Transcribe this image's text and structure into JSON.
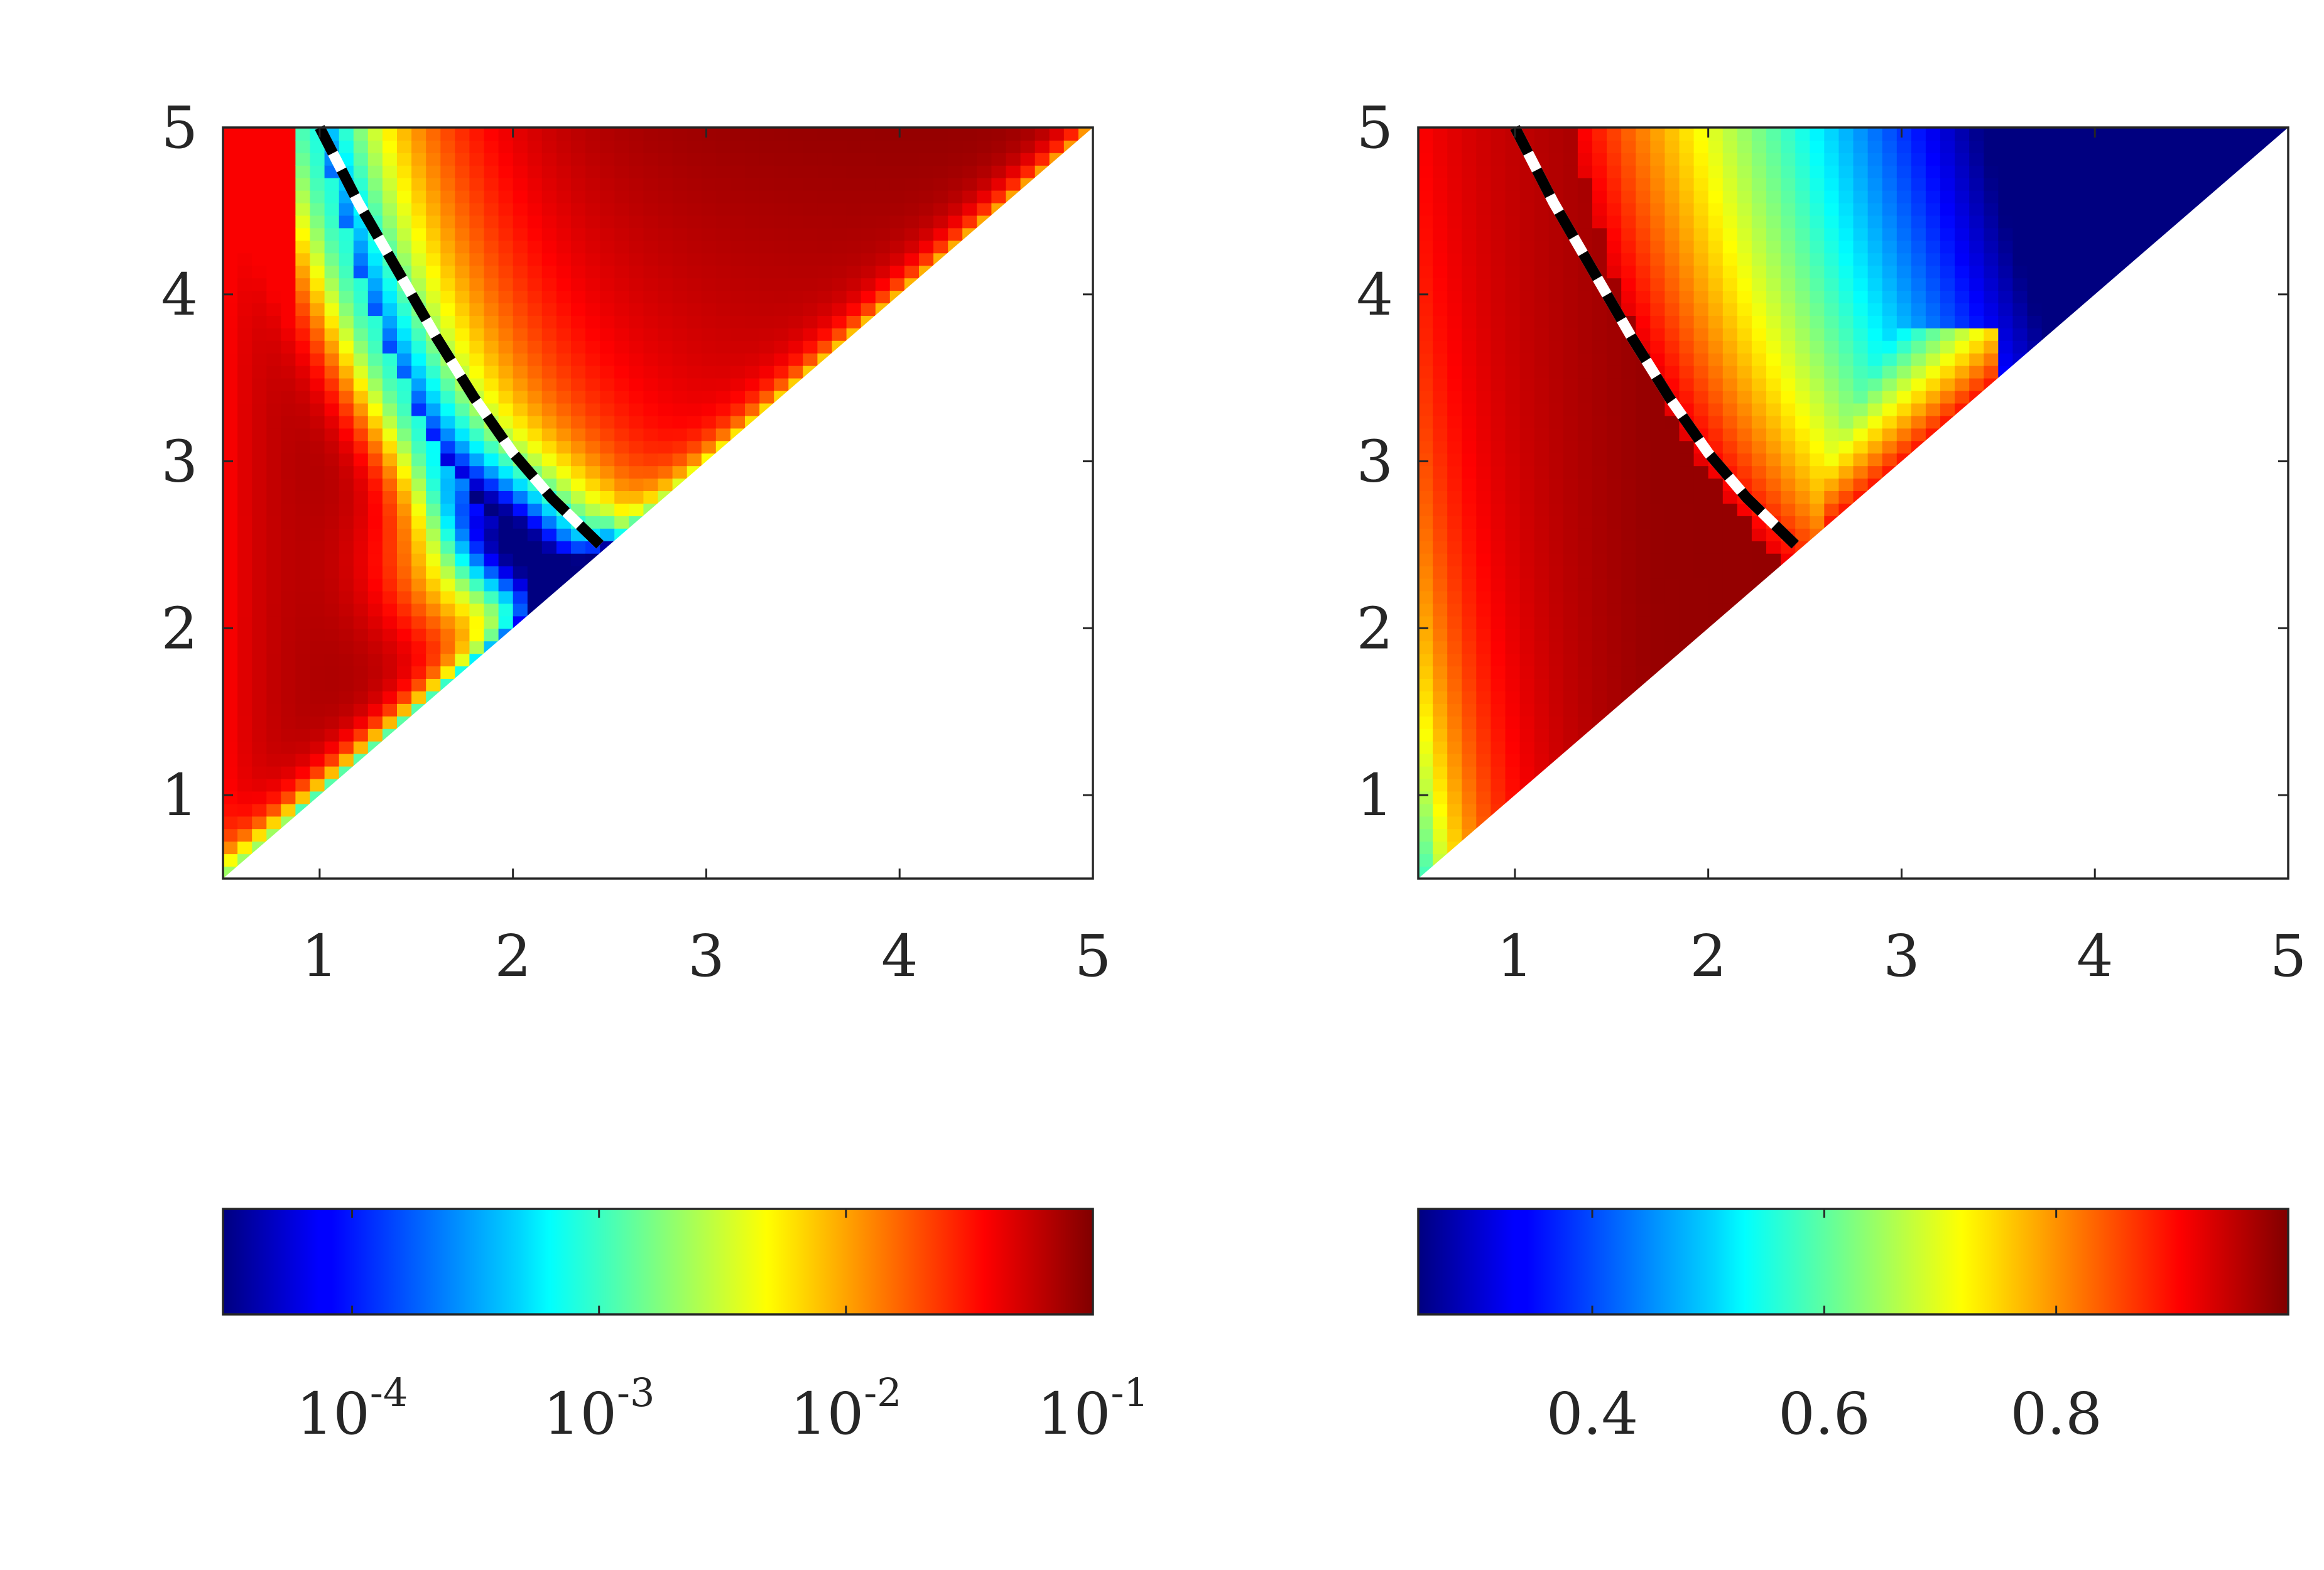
{
  "chart_data": [
    {
      "type": "heatmap",
      "title": "",
      "xlabel": "",
      "ylabel": "",
      "xlim": [
        0.5,
        5
      ],
      "ylim": [
        0.5,
        5
      ],
      "xticks": [
        "1",
        "2",
        "3",
        "4",
        "5"
      ],
      "yticks": [
        "1",
        "2",
        "3",
        "4",
        "5"
      ],
      "domain": "upper triangle y >= x",
      "colormap": "jet",
      "color_scale": "log",
      "color_range": [
        3e-05,
        0.1
      ],
      "colorbar": {
        "orientation": "horizontal",
        "ticks": [
          {
            "base": "10",
            "exp": "-4",
            "value": 0.0001
          },
          {
            "base": "10",
            "exp": "-3",
            "value": 0.001
          },
          {
            "base": "10",
            "exp": "-2",
            "value": 0.01
          },
          {
            "base": "10",
            "exp": "-1",
            "value": 0.1
          }
        ]
      },
      "boundary_curve": {
        "style": "black/white dashed",
        "points": [
          [
            1.0,
            5.0
          ],
          [
            1.2,
            4.55
          ],
          [
            1.4,
            4.15
          ],
          [
            1.6,
            3.75
          ],
          [
            1.8,
            3.38
          ],
          [
            2.0,
            3.05
          ],
          [
            2.2,
            2.78
          ],
          [
            2.45,
            2.5
          ]
        ]
      }
    },
    {
      "type": "heatmap",
      "title": "",
      "xlabel": "",
      "ylabel": "",
      "xlim": [
        0.5,
        5
      ],
      "ylim": [
        0.5,
        5
      ],
      "xticks": [
        "1",
        "2",
        "3",
        "4",
        "5"
      ],
      "yticks": [
        "1",
        "2",
        "3",
        "4",
        "5"
      ],
      "domain": "upper triangle y >= x",
      "colormap": "jet",
      "color_scale": "linear",
      "color_range": [
        0.25,
        1.0
      ],
      "colorbar": {
        "orientation": "horizontal",
        "ticks": [
          {
            "label": "0.4",
            "value": 0.4
          },
          {
            "label": "0.6",
            "value": 0.6
          },
          {
            "label": "0.8",
            "value": 0.8
          }
        ]
      },
      "boundary_curve": {
        "style": "black/white dashed",
        "points": [
          [
            1.0,
            5.0
          ],
          [
            1.2,
            4.55
          ],
          [
            1.4,
            4.15
          ],
          [
            1.6,
            3.75
          ],
          [
            1.8,
            3.38
          ],
          [
            2.0,
            3.05
          ],
          [
            2.2,
            2.78
          ],
          [
            2.45,
            2.5
          ]
        ]
      }
    }
  ]
}
